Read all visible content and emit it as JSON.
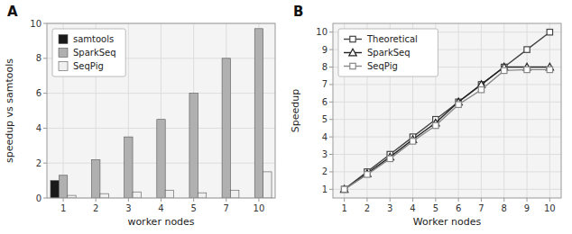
{
  "chart_data": [
    {
      "type": "bar",
      "annotations": [
        "A"
      ],
      "categories": [
        "1",
        "2",
        "3",
        "4",
        "5",
        "7",
        "10"
      ],
      "series": [
        {
          "name": "samtools",
          "color": "#1a1a1a",
          "values": [
            1.0,
            0,
            0,
            0,
            0,
            0,
            0
          ]
        },
        {
          "name": "SparkSeq",
          "color": "#b0b0b0",
          "values": [
            1.3,
            2.2,
            3.5,
            4.5,
            6.0,
            8.0,
            9.7
          ]
        },
        {
          "name": "SeqPig",
          "color": "#f0f0f0",
          "values": [
            0.15,
            0.25,
            0.35,
            0.45,
            0.3,
            0.45,
            1.5
          ]
        }
      ],
      "x_label": "worker nodes",
      "y_label": "speedup vs samtools",
      "ylim": [
        0,
        10
      ],
      "yticks": [
        0,
        2,
        4,
        6,
        8,
        10
      ],
      "grid": true,
      "legend": "upper left"
    },
    {
      "type": "line",
      "annotations": [
        "B"
      ],
      "x": [
        1,
        2,
        3,
        4,
        5,
        6,
        7,
        8,
        9,
        10
      ],
      "series": [
        {
          "name": "Theoretical",
          "color": "#444444",
          "marker": "square",
          "values": [
            1,
            2,
            3,
            4,
            5,
            6,
            7,
            8,
            9,
            10
          ]
        },
        {
          "name": "SparkSeq",
          "color": "#222222",
          "marker": "triangle",
          "values": [
            1.0,
            1.9,
            2.85,
            3.85,
            4.8,
            6.0,
            7.0,
            8.0,
            8.0,
            8.0
          ]
        },
        {
          "name": "SeqPig",
          "color": "#888888",
          "marker": "square",
          "values": [
            1.0,
            1.85,
            2.75,
            3.75,
            4.65,
            5.85,
            6.7,
            7.8,
            7.85,
            7.85
          ]
        }
      ],
      "x_label": "Worker nodes",
      "y_label": "Speedup",
      "xlim": [
        0.5,
        10.5
      ],
      "xticks": [
        1,
        2,
        3,
        4,
        5,
        6,
        7,
        8,
        9,
        10
      ],
      "ylim": [
        0.5,
        10.5
      ],
      "yticks": [
        1,
        2,
        3,
        4,
        5,
        6,
        7,
        8,
        9,
        10
      ],
      "grid": true,
      "legend": "upper left"
    }
  ]
}
